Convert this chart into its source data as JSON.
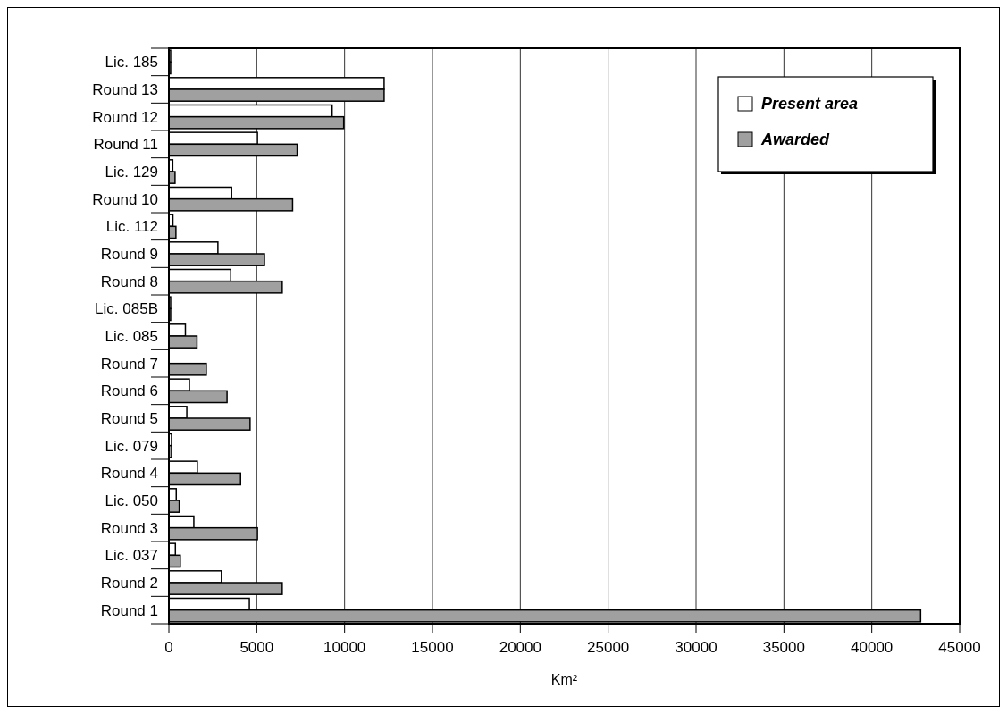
{
  "chart_data": {
    "type": "bar",
    "orientation": "horizontal",
    "xlabel": "Km²",
    "categories": [
      "Lic. 185",
      "Round 13",
      "Round 12",
      "Round 11",
      "Lic. 129",
      "Round 10",
      "Lic. 112",
      "Round 9",
      "Round 8",
      "Lic. 085B",
      "Lic. 085",
      "Round 7",
      "Round 6",
      "Round 5",
      "Lic. 079",
      "Round 4",
      "Lic. 050",
      "Round 3",
      "Lic. 037",
      "Round 2",
      "Round 1"
    ],
    "series": [
      {
        "name": "Present area",
        "color": "#ffffff",
        "values": [
          100,
          12250,
          9290,
          5040,
          220,
          3570,
          230,
          2790,
          3520,
          100,
          940,
          0,
          1170,
          1020,
          150,
          1620,
          420,
          1420,
          370,
          2990,
          4580
        ]
      },
      {
        "name": "Awarded",
        "color": "#a0a0a0",
        "values": [
          100,
          12250,
          9950,
          7300,
          350,
          7040,
          400,
          5440,
          6450,
          100,
          1600,
          2130,
          3310,
          4620,
          150,
          4080,
          590,
          5040,
          650,
          6450,
          42780
        ]
      }
    ],
    "xlim": [
      0,
      45000
    ],
    "xticks": [
      0,
      5000,
      10000,
      15000,
      20000,
      25000,
      30000,
      35000,
      40000,
      45000
    ],
    "grid": "x",
    "legend": "top right"
  }
}
